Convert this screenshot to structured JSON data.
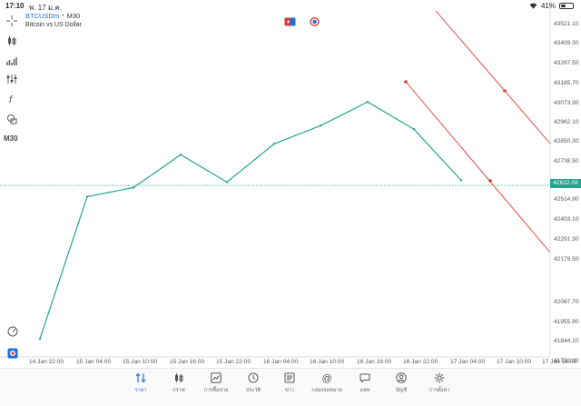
{
  "status_bar": {
    "time": "17:10",
    "date": "พ. 17 ม.ค.",
    "battery": "41%",
    "battery_level": 0.41
  },
  "symbol": {
    "name": "BTCUSDm",
    "separator": "•",
    "timeframe": "M30",
    "description": "Bitcoin vs US Dollar"
  },
  "toolbar": {
    "timeframe_label": "M30"
  },
  "price_axis": {
    "labels": [
      "43521.10",
      "43409.30",
      "43297.50",
      "43185.70",
      "43073.90",
      "42962.10",
      "42850.30",
      "42738.50",
      "42514.90",
      "42403.10",
      "42291.30",
      "42179.50",
      "42067.70",
      "41955.90",
      "41844.10",
      "41732.30"
    ],
    "current_price": "42622.08"
  },
  "time_axis": {
    "labels": [
      "14 Jan 22:00",
      "15 Jan 04:00",
      "15 Jan 10:00",
      "15 Jan 16:00",
      "15 Jan 22:00",
      "16 Jan 04:00",
      "16 Jan 10:00",
      "16 Jan 16:00",
      "16 Jan 22:00",
      "17 Jan 04:00",
      "17 Jan 10:00",
      "17 Jan 16:00"
    ]
  },
  "chart_data": {
    "type": "line",
    "symbol": "BTCUSDm",
    "timeframe": "M30",
    "x": [
      "14 Jan 22:00",
      "15 Jan 04:00",
      "15 Jan 10:00",
      "15 Jan 16:00",
      "15 Jan 22:00",
      "16 Jan 04:00",
      "16 Jan 10:00",
      "16 Jan 16:00",
      "16 Jan 22:00",
      "17 Jan 04:00"
    ],
    "series": [
      {
        "values": [
          41780,
          42560,
          42610,
          42790,
          42640,
          42850,
          42950,
          43080,
          42930,
          42650
        ]
      }
    ],
    "ylim": [
      41680,
      43580
    ],
    "line_color": "#23a58b",
    "trend_line_color": "#e53935",
    "current_price_line": 42622.08,
    "grid": false
  },
  "bottom_nav": {
    "items": [
      {
        "label": "ราคา",
        "icon": "quotes-icon"
      },
      {
        "label": "กราฟ",
        "icon": "chart-icon"
      },
      {
        "label": "การซื้อขาย",
        "icon": "trade-icon"
      },
      {
        "label": "ประวัติ",
        "icon": "history-icon"
      },
      {
        "label": "ข่าว",
        "icon": "news-icon"
      },
      {
        "label": "กล่องจดหมาย",
        "icon": "mailbox-icon"
      },
      {
        "label": "แชท",
        "icon": "chat-icon"
      },
      {
        "label": "บัญชี",
        "icon": "account-icon"
      },
      {
        "label": "การตั้งค่า",
        "icon": "settings-icon"
      }
    ],
    "active_color": "#2a7de1"
  }
}
